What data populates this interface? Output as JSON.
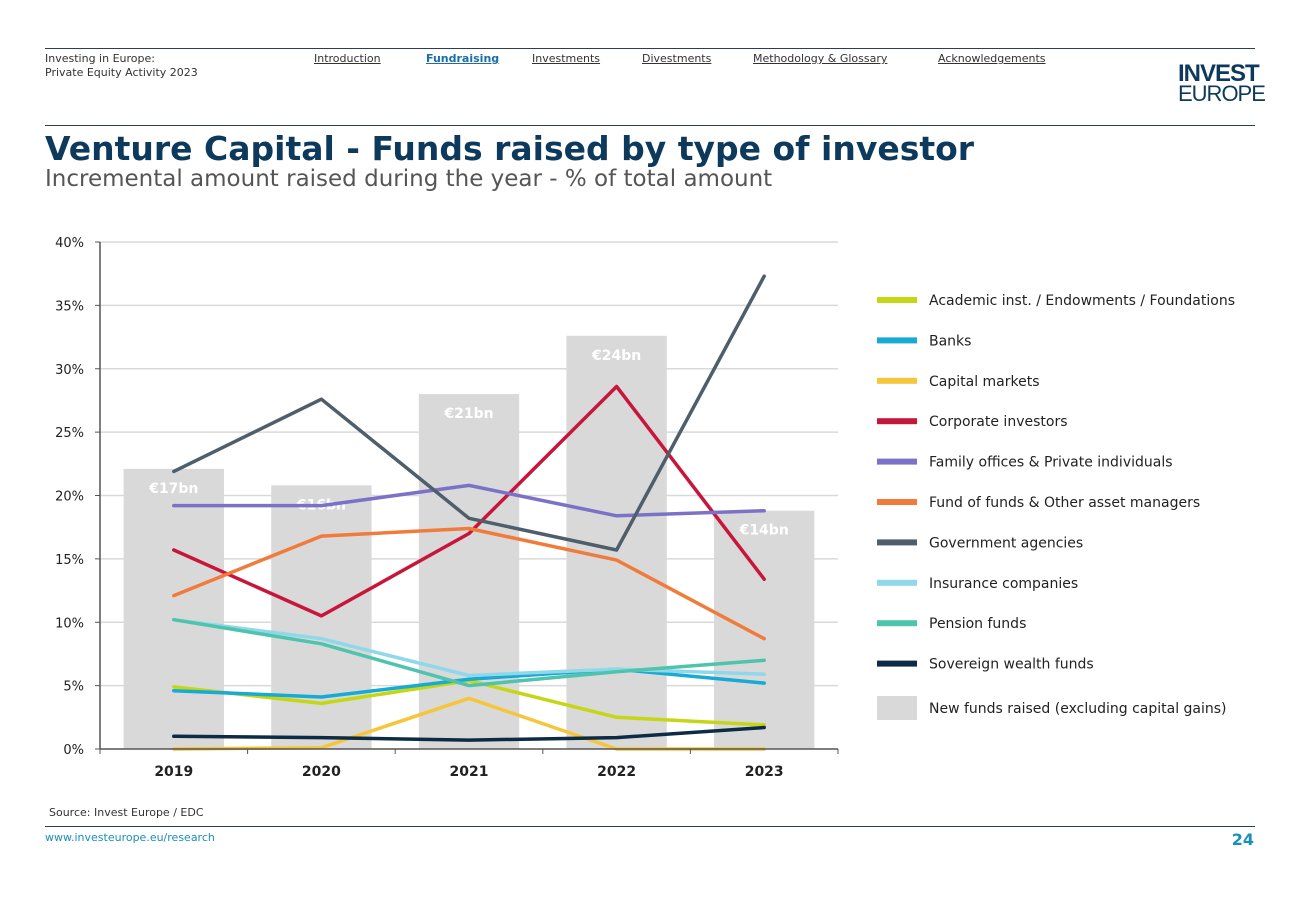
{
  "header": {
    "doc_title_line1": "Investing in Europe:",
    "doc_title_line2": "Private Equity Activity 2023",
    "nav": [
      {
        "label": "Introduction",
        "active": false
      },
      {
        "label": "Fundraising",
        "active": true
      },
      {
        "label": "Investments",
        "active": false
      },
      {
        "label": "Divestments",
        "active": false
      },
      {
        "label": "Methodology & Glossary",
        "active": false
      },
      {
        "label": "Acknowledgements",
        "active": false
      }
    ],
    "logo_line1": "INVEST",
    "logo_line2": "EUROPE"
  },
  "page": {
    "title": "Venture Capital - Funds raised by type of investor",
    "subtitle": "Incremental amount raised during the year - % of total amount"
  },
  "chart_data": {
    "type": "line",
    "categories": [
      "2019",
      "2020",
      "2021",
      "2022",
      "2023"
    ],
    "ylim": [
      0,
      40
    ],
    "yticks": [
      0,
      5,
      10,
      15,
      20,
      25,
      30,
      35,
      40
    ],
    "ytick_labels": [
      "0%",
      "5%",
      "10%",
      "15%",
      "20%",
      "25%",
      "30%",
      "35%",
      "40%"
    ],
    "bars": {
      "name": "New funds raised (excluding capital gains)",
      "color": "#d9d9d9",
      "values": [
        22.1,
        20.8,
        28.0,
        32.6,
        18.8
      ],
      "labels": [
        "€17bn",
        "€16bn",
        "€21bn",
        "€24bn",
        "€14bn"
      ]
    },
    "series": [
      {
        "name": "Academic inst. / Endowments / Foundations",
        "color": "#c5d614",
        "values": [
          4.9,
          3.6,
          5.4,
          2.5,
          1.9
        ]
      },
      {
        "name": "Banks",
        "color": "#16aad4",
        "values": [
          4.6,
          4.1,
          5.5,
          6.3,
          5.2
        ]
      },
      {
        "name": "Capital markets",
        "color": "#f5c53a",
        "values": [
          0.0,
          0.1,
          4.0,
          0.0,
          0.0
        ]
      },
      {
        "name": "Corporate investors",
        "color": "#c8163a",
        "values": [
          15.7,
          10.5,
          17.0,
          28.6,
          13.4
        ]
      },
      {
        "name": "Family offices & Private individuals",
        "color": "#7b72c8",
        "values": [
          19.2,
          19.2,
          20.8,
          18.4,
          18.8
        ]
      },
      {
        "name": "Fund of funds & Other asset managers",
        "color": "#f07b3a",
        "values": [
          12.1,
          16.8,
          17.4,
          14.9,
          8.7
        ]
      },
      {
        "name": "Government agencies",
        "color": "#4e5e6a",
        "values": [
          21.9,
          27.6,
          18.2,
          15.7,
          37.3
        ]
      },
      {
        "name": "Insurance companies",
        "color": "#8fd8ea",
        "values": [
          10.2,
          8.7,
          5.8,
          6.3,
          5.9
        ]
      },
      {
        "name": "Pension funds",
        "color": "#4fc4ac",
        "values": [
          10.2,
          8.3,
          5.0,
          6.1,
          7.0
        ]
      },
      {
        "name": "Sovereign wealth funds",
        "color": "#0d2b45",
        "values": [
          1.0,
          0.9,
          0.7,
          0.9,
          1.7
        ]
      }
    ]
  },
  "footer": {
    "source": "Source: Invest Europe / EDC",
    "url": "www.investeurope.eu/research",
    "page_number": "24"
  }
}
